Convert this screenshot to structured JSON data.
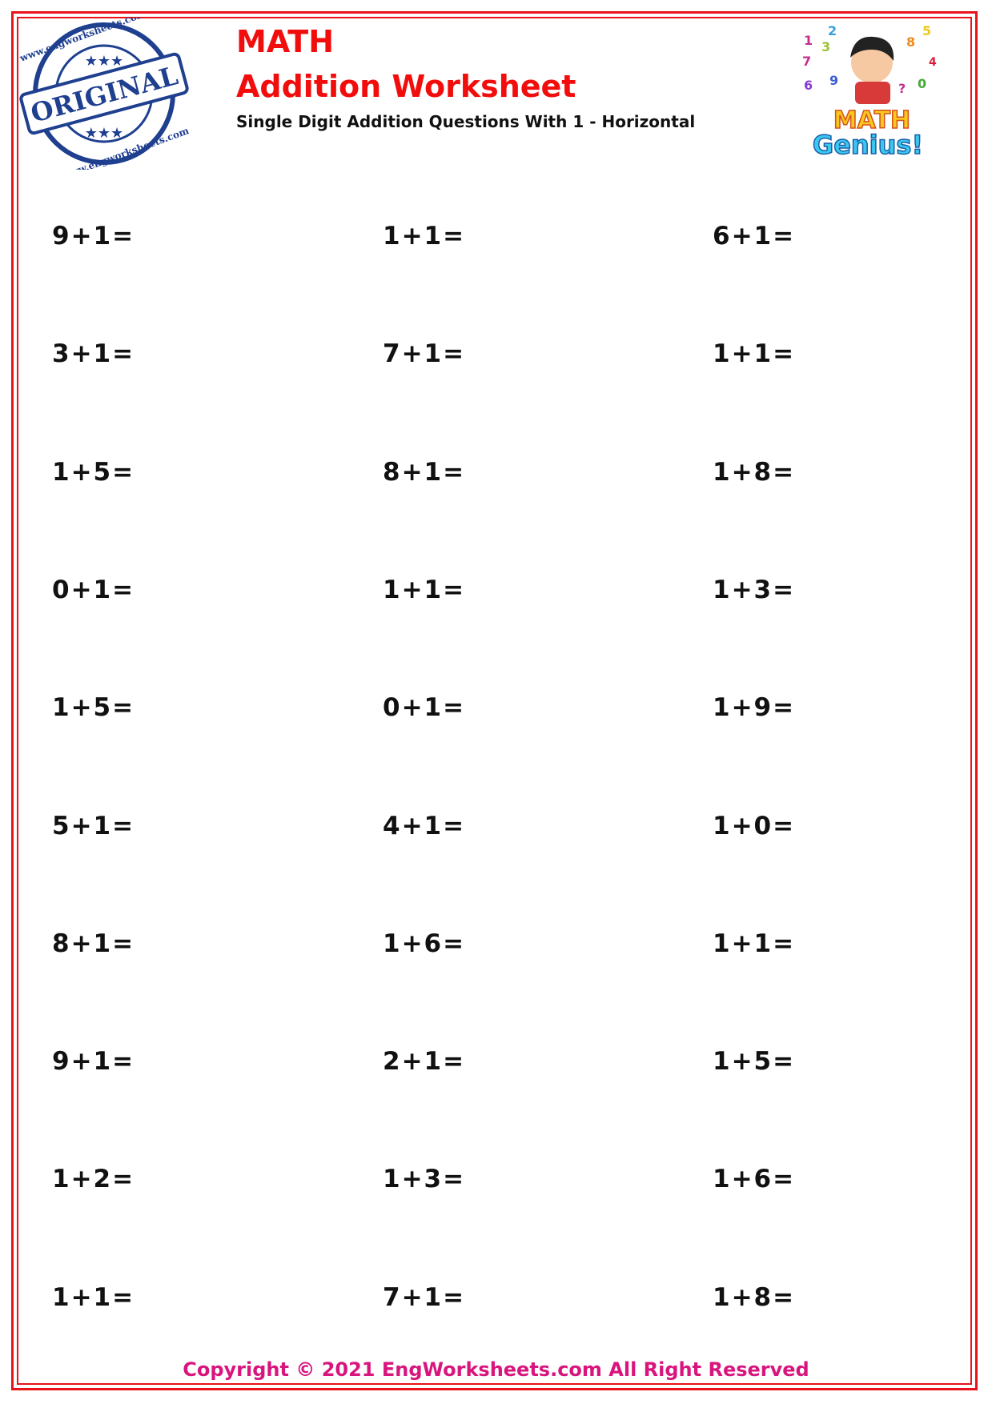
{
  "header": {
    "title_line1": "MATH",
    "title_line2": "Addition Worksheet",
    "subtitle": "Single Digit Addition Questions With 1 - Horizontal",
    "stamp_text": "ORIGINAL",
    "stamp_ring_text": "www.engworksheets.com",
    "mascot_text": "MATH Genius!"
  },
  "questions": [
    [
      "9+1=",
      "1+1=",
      "6+1="
    ],
    [
      "3+1=",
      "7+1=",
      "1+1="
    ],
    [
      "1+5=",
      "8+1=",
      "1+8="
    ],
    [
      "0+1=",
      "1+1=",
      "1+3="
    ],
    [
      "1+5=",
      "0+1=",
      "1+9="
    ],
    [
      "5+1=",
      "4+1=",
      "1+0="
    ],
    [
      "8+1=",
      "1+6=",
      "1+1="
    ],
    [
      "9+1=",
      "2+1=",
      "1+5="
    ],
    [
      "1+2=",
      "1+3=",
      "1+6="
    ],
    [
      "1+1=",
      "7+1=",
      "1+8="
    ]
  ],
  "footer": {
    "copyright": "Copyright © 2021 EngWorksheets.com All Right Reserved"
  },
  "colors": {
    "title": "#f20d0d",
    "border": "#e8141b",
    "copyright": "#d8157d",
    "stamp": "#1f3f8f"
  }
}
